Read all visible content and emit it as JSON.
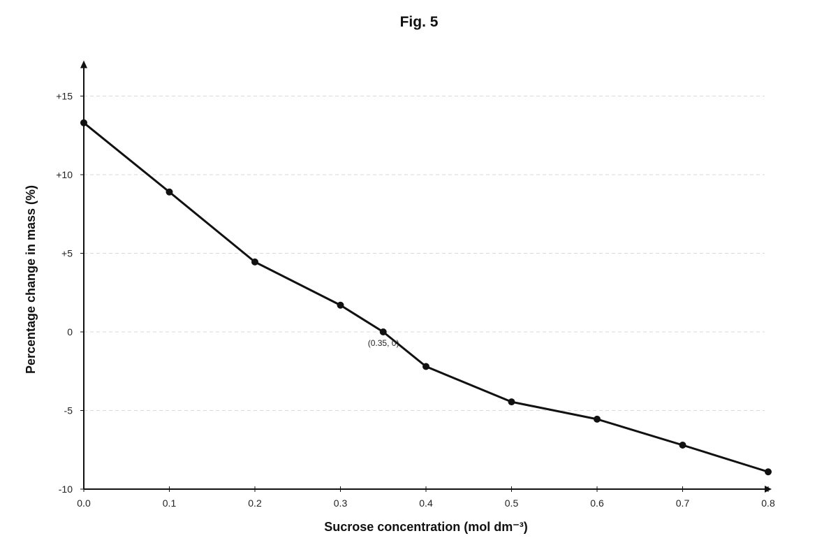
{
  "chart_data": {
    "type": "line",
    "title": "Fig. 5",
    "xlabel": "Sucrose concentration (mol dm⁻³)",
    "ylabel": "Percentage change in mass (%)",
    "xlim": [
      0.0,
      0.8
    ],
    "ylim": [
      -10,
      17
    ],
    "x_ticks": [
      0.0,
      0.1,
      0.2,
      0.3,
      0.4,
      0.5,
      0.6,
      0.7,
      0.8
    ],
    "x_tick_labels": [
      "0.0",
      "0.1",
      "0.2",
      "0.3",
      "0.4",
      "0.5",
      "0.6",
      "0.7",
      "0.8"
    ],
    "y_ticks": [
      15,
      10,
      5,
      0,
      -5,
      -10
    ],
    "y_tick_labels": [
      "+15",
      "+10",
      "+5",
      "0",
      "-5",
      "-10"
    ],
    "grid": "horizontal dashed",
    "legend": "none",
    "series": [
      {
        "points": [
          {
            "x": 0.0,
            "y": 13.3
          },
          {
            "x": 0.1,
            "y": 8.9
          },
          {
            "x": 0.2,
            "y": 4.45
          },
          {
            "x": 0.3,
            "y": 1.7
          },
          {
            "x": 0.35,
            "y": 0.0
          },
          {
            "x": 0.4,
            "y": -2.2
          },
          {
            "x": 0.5,
            "y": -4.45
          },
          {
            "x": 0.6,
            "y": -5.55
          },
          {
            "x": 0.7,
            "y": -7.2
          },
          {
            "x": 0.8,
            "y": -8.9
          }
        ],
        "color": "#111111"
      }
    ],
    "annotations": [
      {
        "text": "(0.35, 0)",
        "x": 0.35,
        "y": 0.0
      }
    ]
  }
}
